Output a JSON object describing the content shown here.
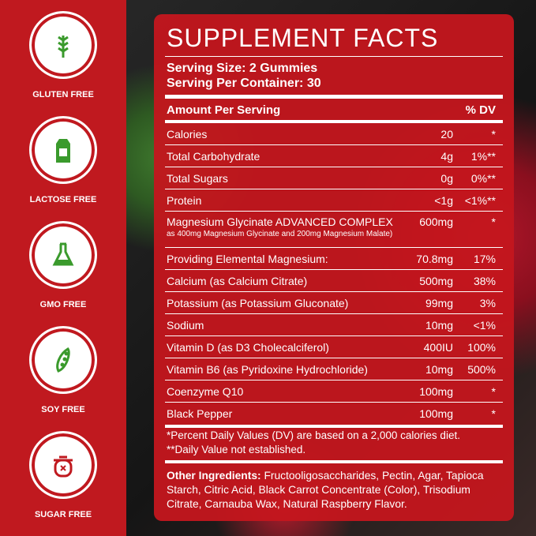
{
  "badges": [
    "GLUTEN FREE",
    "LACTOSE FREE",
    "GMO FREE",
    "SOY FREE",
    "SUGAR FREE"
  ],
  "facts": {
    "title": "SUPPLEMENT FACTS",
    "serving_size": "Serving Size: 2 Gummies",
    "servings_per_container": "Serving Per Container: 30",
    "header": {
      "amount": "Amount Per Serving",
      "dv": "% DV"
    },
    "rows": [
      {
        "name": "Calories",
        "amount": "20",
        "dv": "*"
      },
      {
        "name": "Total Carbohydrate",
        "amount": "4g",
        "dv": "1%**"
      },
      {
        "name": "Total Sugars",
        "amount": "0g",
        "dv": "0%**"
      },
      {
        "name": "Protein",
        "amount": "<1g",
        "dv": "<1%**"
      },
      {
        "name": "Magnesium Glycinate ADVANCED COMPLEX",
        "sub": "as 400mg Magnesium Glycinate and 200mg Magnesium Malate)",
        "amount": "600mg",
        "dv": "*"
      },
      {
        "name": "Providing Elemental Magnesium:",
        "amount": "70.8mg",
        "dv": "17%"
      },
      {
        "name": "Calcium (as Calcium Citrate)",
        "amount": "500mg",
        "dv": "38%"
      },
      {
        "name": "Potassium (as Potassium Gluconate)",
        "amount": "99mg",
        "dv": "3%"
      },
      {
        "name": "Sodium",
        "amount": "10mg",
        "dv": "<1%"
      },
      {
        "name": "Vitamin D (as D3 Cholecalciferol)",
        "amount": "400IU",
        "dv": "100%"
      },
      {
        "name": "Vitamin B6 (as Pyridoxine Hydrochloride)",
        "amount": "10mg",
        "dv": "500%"
      },
      {
        "name": "Coenzyme Q10",
        "amount": "100mg",
        "dv": "*"
      },
      {
        "name": "Black Pepper",
        "amount": "100mg",
        "dv": "*"
      }
    ],
    "footnotes": [
      "*Percent Daily Values (DV) are based on a 2,000 calories diet.",
      "**Daily Value not established."
    ],
    "other_label": "Other Ingredients:",
    "other_text": "Fructooligosaccharides, Pectin, Agar, Tapioca Starch, Citric Acid, Black Carrot Concentrate (Color), Trisodium Citrate, Carnauba Wax, Natural Raspberry Flavor."
  }
}
